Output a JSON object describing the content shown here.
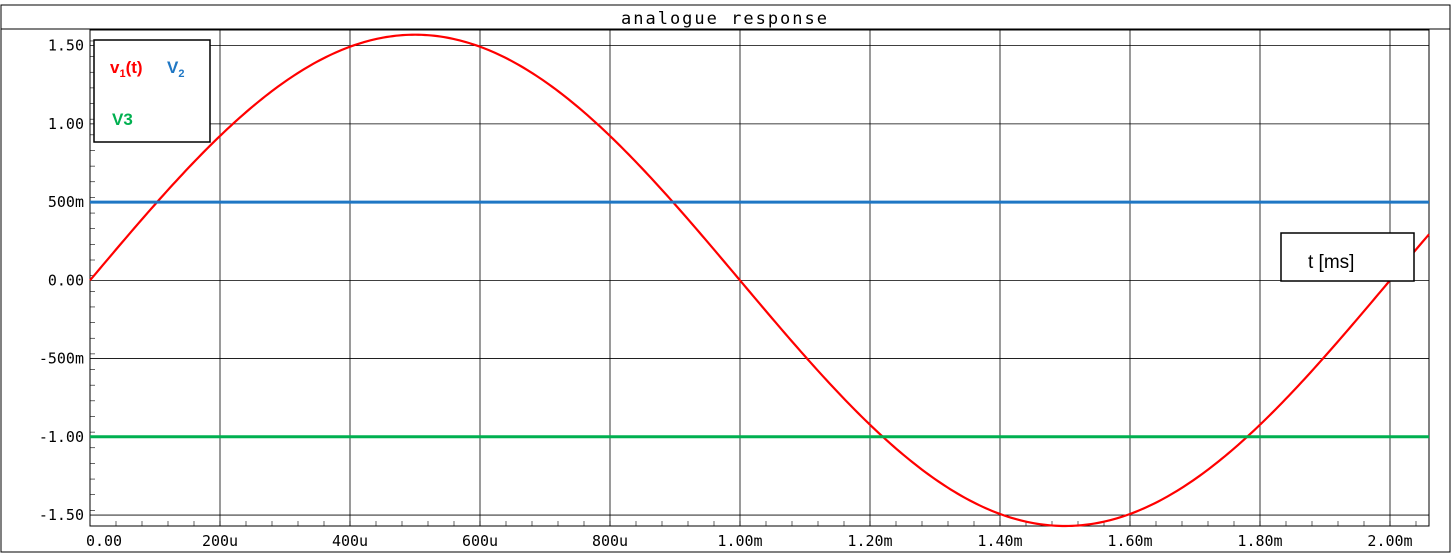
{
  "chart_data": {
    "type": "line",
    "title": "analogue response",
    "x_axis": {
      "unit_label": "t [ms]",
      "range": [
        0,
        0.00206
      ],
      "ticks": [
        0,
        0.0002,
        0.0004,
        0.0006,
        0.0008,
        0.001,
        0.0012,
        0.0014,
        0.0016,
        0.0018,
        0.002
      ],
      "tick_labels": [
        "0.00",
        "200u",
        "400u",
        "600u",
        "800u",
        "1.00m",
        "1.20m",
        "1.40m",
        "1.60m",
        "1.80m",
        "2.00m"
      ]
    },
    "y_axis": {
      "range": [
        -1.57,
        1.6
      ],
      "ticks": [
        1.5,
        1.0,
        0.5,
        0.0,
        -0.5,
        -1.0,
        -1.5
      ],
      "tick_labels": [
        "1.50",
        "1.00",
        "500m",
        "0.00",
        "-500m",
        "-1.00",
        "-1.50"
      ]
    },
    "grid": true,
    "legend_position": "top-left",
    "series": [
      {
        "name": "v1(t)",
        "label_main": "v",
        "label_sub": "1",
        "label_suffix": "(t)",
        "color": "#ff0000",
        "x": [
          0,
          0.0001,
          0.0002,
          0.0003,
          0.0004,
          0.0005,
          0.0006,
          0.0007,
          0.0008,
          0.0009,
          0.001,
          0.0011,
          0.0012,
          0.0013,
          0.0014,
          0.0015,
          0.0016,
          0.0017,
          0.0018,
          0.0019,
          0.002,
          0.00206
        ],
        "y": [
          0,
          0.49,
          0.92,
          1.27,
          1.49,
          1.57,
          1.49,
          1.27,
          0.92,
          0.49,
          0,
          -0.49,
          -0.92,
          -1.27,
          -1.49,
          -1.57,
          -1.49,
          -1.27,
          -0.92,
          -0.49,
          0,
          0.0
        ]
      },
      {
        "name": "V2",
        "label_main": "V",
        "label_sub": "2",
        "label_suffix": "",
        "color": "#1f77c4",
        "x": [
          0,
          0.00206
        ],
        "y": [
          0.5,
          0.5
        ]
      },
      {
        "name": "V3",
        "label_main": "V3",
        "label_sub": "",
        "label_suffix": "",
        "color": "#00b050",
        "x": [
          0,
          0.00206
        ],
        "y": [
          -1.0,
          -1.0
        ]
      }
    ]
  }
}
